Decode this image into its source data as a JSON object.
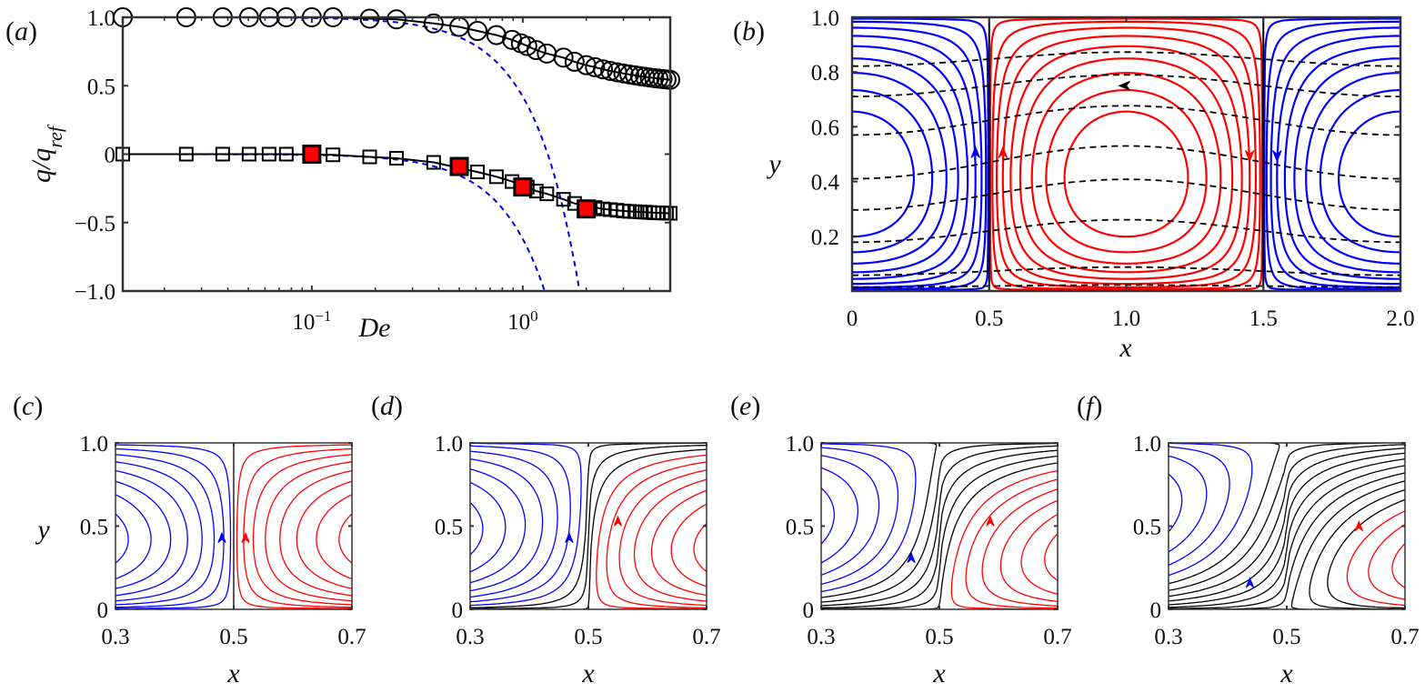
{
  "figure": {
    "panels": {
      "a": {
        "label_open": "(",
        "label_letter": "a",
        "label_close": ")"
      },
      "b": {
        "label_open": "(",
        "label_letter": "b",
        "label_close": ")"
      },
      "c": {
        "label_open": "(",
        "label_letter": "c",
        "label_close": ")"
      },
      "d": {
        "label_open": "(",
        "label_letter": "d",
        "label_close": ")"
      },
      "e": {
        "label_open": "(",
        "label_letter": "e",
        "label_close": ")"
      },
      "f": {
        "label_open": "(",
        "label_letter": "f",
        "label_close": ")"
      }
    },
    "colors": {
      "positive_cell": "#ff0000",
      "negative_cell": "#0000ff",
      "mixed": "#000000",
      "highlight_marker": "#ff0000",
      "asymptote": "#0000dd"
    }
  },
  "chart_data": [
    {
      "id": "a",
      "type": "scatter",
      "title": "",
      "xlabel": "De",
      "ylabel": "q/q_ref",
      "ylabel_main": "q/q",
      "ylabel_sub": "ref",
      "xscale": "log",
      "xlim": [
        0.0127,
        5.0
      ],
      "ylim": [
        -1.0,
        1.0
      ],
      "yticks": [
        {
          "value": 1.0,
          "label": "1.0"
        },
        {
          "value": 0.5,
          "label": "0.5"
        },
        {
          "value": 0.0,
          "label": "0"
        },
        {
          "value": -0.5,
          "label": "−0.5"
        },
        {
          "value": -1.0,
          "label": "−1.0"
        }
      ],
      "xticks": [
        {
          "value": 0.1,
          "base": "10",
          "exp": "−1"
        },
        {
          "value": 1.0,
          "base": "10",
          "exp": "0"
        }
      ],
      "grid": false,
      "series": [
        {
          "name": "circles",
          "marker": "circle",
          "line": "solid-black",
          "x": [
            0.0127,
            0.0254,
            0.0378,
            0.0504,
            0.0627,
            0.0757,
            0.1,
            0.126,
            0.188,
            0.252,
            0.378,
            0.5,
            0.61,
            0.75,
            0.89,
            0.98,
            1.05,
            1.16,
            1.3,
            1.56,
            1.76,
            2.0,
            2.2,
            2.4,
            2.6,
            2.8,
            3.0,
            3.2,
            3.4,
            3.6,
            3.8,
            4.0,
            4.2,
            4.4,
            4.6,
            4.8,
            5.0
          ],
          "y": [
            1.0,
            1.0,
            1.0,
            1.0,
            1.0,
            1.0,
            1.0,
            1.0,
            0.99,
            0.985,
            0.955,
            0.93,
            0.9,
            0.87,
            0.835,
            0.81,
            0.79,
            0.76,
            0.735,
            0.705,
            0.675,
            0.65,
            0.635,
            0.62,
            0.608,
            0.598,
            0.59,
            0.582,
            0.576,
            0.57,
            0.565,
            0.56,
            0.556,
            0.552,
            0.549,
            0.546,
            0.543
          ]
        },
        {
          "name": "squares",
          "marker": "square",
          "line": "solid-black",
          "x": [
            0.0127,
            0.0254,
            0.0378,
            0.0504,
            0.0627,
            0.0757,
            0.126,
            0.188,
            0.252,
            0.378,
            0.61,
            0.75,
            0.89,
            1.05,
            1.16,
            1.3,
            1.56,
            1.76,
            2.2,
            2.4,
            2.6,
            2.8,
            3.0,
            3.2,
            3.4,
            3.6,
            3.8,
            4.0,
            4.2,
            4.4,
            4.6,
            4.8,
            5.0
          ],
          "y": [
            0.0,
            0.0,
            0.0,
            0.0,
            0.0,
            0.0,
            -0.005,
            -0.02,
            -0.03,
            -0.06,
            -0.13,
            -0.165,
            -0.2,
            -0.24,
            -0.27,
            -0.29,
            -0.33,
            -0.36,
            -0.39,
            -0.4,
            -0.405,
            -0.41,
            -0.415,
            -0.418,
            -0.42,
            -0.422,
            -0.424,
            -0.426,
            -0.428,
            -0.429,
            -0.43,
            -0.431,
            -0.432
          ]
        },
        {
          "name": "highlighted",
          "marker": "square-filled-red",
          "x": [
            0.1,
            0.5,
            1.0,
            2.0
          ],
          "y": [
            0.0,
            -0.09,
            -0.24,
            -0.4
          ]
        },
        {
          "name": "asymptote-upper",
          "marker": "none",
          "line": "dashed-blue",
          "formula": "1 - c*De^2",
          "c": 0.58
        },
        {
          "name": "asymptote-lower",
          "marker": "none",
          "line": "dashed-blue",
          "formula": "-c*De^2",
          "c": 0.62
        }
      ]
    },
    {
      "id": "b",
      "type": "contour",
      "xlabel": "x",
      "ylabel": "y",
      "xlim": [
        0,
        2.0
      ],
      "ylim": [
        0,
        1.0
      ],
      "xticks": [
        {
          "value": 0,
          "label": "0"
        },
        {
          "value": 0.5,
          "label": "0.5"
        },
        {
          "value": 1.0,
          "label": "1.0"
        },
        {
          "value": 1.5,
          "label": "1.5"
        },
        {
          "value": 2.0,
          "label": "2.0"
        }
      ],
      "yticks": [
        {
          "value": 0.2,
          "label": "0.2"
        },
        {
          "value": 0.4,
          "label": "0.4"
        },
        {
          "value": 0.6,
          "label": "0.6"
        },
        {
          "value": 0.8,
          "label": "0.8"
        },
        {
          "value": 1.0,
          "label": "1.0"
        }
      ],
      "separatrices_x": [
        0.5,
        1.5
      ],
      "cell_center_y": 0.3,
      "red_cell_levels": 9,
      "blue_cell_levels": 9,
      "dashed_line_count": 8,
      "dashed_line_y_at_center": [
        0.02,
        0.08,
        0.24,
        0.38,
        0.5,
        0.65,
        0.77,
        0.86
      ],
      "arrows": [
        {
          "color": "blue",
          "x": 0.45,
          "y": 0.5,
          "dir": "up"
        },
        {
          "color": "red",
          "x": 0.55,
          "y": 0.5,
          "dir": "up"
        },
        {
          "color": "red",
          "x": 1.45,
          "y": 0.5,
          "dir": "down"
        },
        {
          "color": "blue",
          "x": 1.55,
          "y": 0.5,
          "dir": "down"
        },
        {
          "color": "black",
          "x": 1.0,
          "y": 0.75,
          "dir": "left"
        }
      ]
    },
    {
      "id": "c",
      "type": "contour",
      "xlabel": "x",
      "ylabel": "y",
      "xlim": [
        0.3,
        0.7
      ],
      "ylim": [
        0,
        1.0
      ],
      "xticks": [
        {
          "value": 0.3,
          "label": "0.3"
        },
        {
          "value": 0.5,
          "label": "0.5"
        },
        {
          "value": 0.7,
          "label": "0.7"
        }
      ],
      "yticks": [
        {
          "value": 0,
          "label": "0"
        },
        {
          "value": 0.5,
          "label": "0.5"
        },
        {
          "value": 1.0,
          "label": "1.0"
        }
      ],
      "shift": 0.0,
      "black_lines": 1,
      "blue_lines": 8,
      "red_lines": 8,
      "arrow_y": 0.42
    },
    {
      "id": "d",
      "type": "contour",
      "xlabel": "x",
      "ylabel": "",
      "xlim": [
        0.3,
        0.7
      ],
      "ylim": [
        0,
        1.0
      ],
      "xticks": [
        {
          "value": 0.3,
          "label": "0.3"
        },
        {
          "value": 0.5,
          "label": "0.5"
        },
        {
          "value": 0.7,
          "label": "0.7"
        }
      ],
      "yticks": [
        {
          "value": 0,
          "label": "0"
        },
        {
          "value": 0.5,
          "label": "0.5"
        },
        {
          "value": 1.0,
          "label": "1.0"
        }
      ],
      "shift": 0.25,
      "black_lines": 3,
      "blue_lines": 7,
      "red_lines": 7,
      "arrow_y": 0.42
    },
    {
      "id": "e",
      "type": "contour",
      "xlabel": "x",
      "ylabel": "",
      "xlim": [
        0.3,
        0.7
      ],
      "ylim": [
        0,
        1.0
      ],
      "xticks": [
        {
          "value": 0.3,
          "label": "0.3"
        },
        {
          "value": 0.5,
          "label": "0.5"
        },
        {
          "value": 0.7,
          "label": "0.7"
        }
      ],
      "yticks": [
        {
          "value": 0,
          "label": "0"
        },
        {
          "value": 0.5,
          "label": "0.5"
        },
        {
          "value": 1.0,
          "label": "1.0"
        }
      ],
      "shift": 0.55,
      "black_lines": 6,
      "blue_lines": 5,
      "red_lines": 6,
      "arrow_y": 0.3
    },
    {
      "id": "f",
      "type": "contour",
      "xlabel": "x",
      "ylabel": "",
      "xlim": [
        0.3,
        0.7
      ],
      "ylim": [
        0,
        1.0
      ],
      "xticks": [
        {
          "value": 0.3,
          "label": "0.3"
        },
        {
          "value": 0.5,
          "label": "0.5"
        },
        {
          "value": 0.7,
          "label": "0.7"
        }
      ],
      "yticks": [
        {
          "value": 0,
          "label": "0"
        },
        {
          "value": 0.5,
          "label": "0.5"
        },
        {
          "value": 1.0,
          "label": "1.0"
        }
      ],
      "shift": 0.85,
      "black_lines": 11,
      "blue_lines": 4,
      "red_lines": 3,
      "arrow_y": 0.15
    }
  ]
}
